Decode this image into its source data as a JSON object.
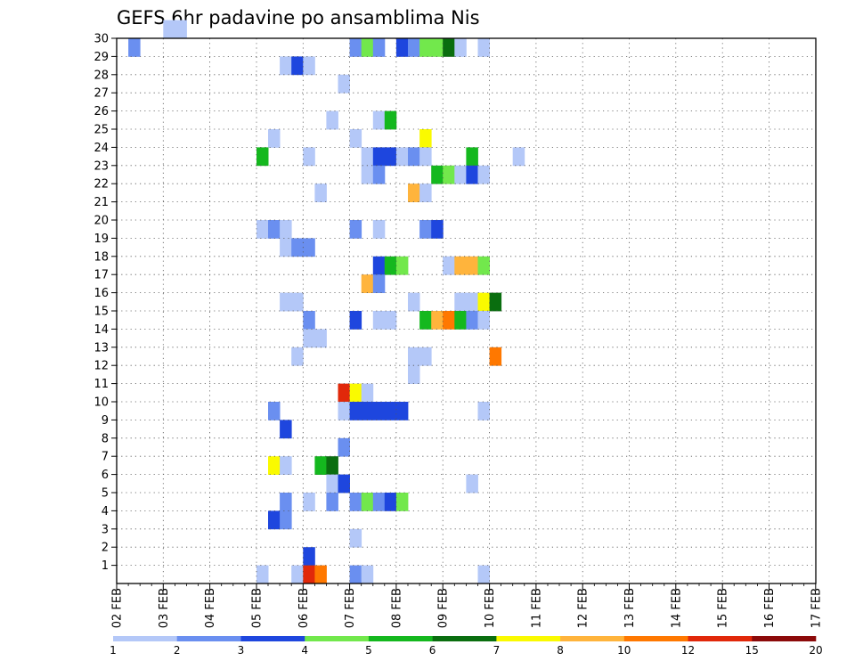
{
  "chart_data": {
    "type": "heatmap",
    "title": "GEFS 6hr padavine po ansamblima Nis",
    "xlabel": "",
    "ylabel": "",
    "x_tick_labels": [
      "02 FEB",
      "03 FEB",
      "04 FEB",
      "05 FEB",
      "06 FEB",
      "07 FEB",
      "08 FEB",
      "09 FEB",
      "10 FEB",
      "11 FEB",
      "12 FEB",
      "13 FEB",
      "14 FEB",
      "15 FEB",
      "16 FEB",
      "17 FEB"
    ],
    "x_range": [
      0,
      60
    ],
    "y_tick_labels": [
      "1",
      "2",
      "3",
      "4",
      "5",
      "6",
      "7",
      "8",
      "9",
      "10",
      "11",
      "12",
      "13",
      "14",
      "15",
      "16",
      "17",
      "18",
      "19",
      "20",
      "21",
      "22",
      "23",
      "24",
      "25",
      "26",
      "27",
      "28",
      "29",
      "30"
    ],
    "y_range": [
      0,
      30
    ],
    "grid": true,
    "colorbar": {
      "position": "bottom",
      "labels": [
        "1",
        "2",
        "3",
        "4",
        "5",
        "6",
        "7",
        "8",
        "10",
        "12",
        "15",
        "20"
      ],
      "colors": [
        "#b4c8f8",
        "#6a8ff0",
        "#1e46de",
        "#72e84c",
        "#14b81e",
        "#0a6e0f",
        "#fafa00",
        "#ffb43c",
        "#ff7800",
        "#e1280a",
        "#8c0a0a"
      ]
    },
    "cells": [
      [
        4,
        30,
        0
      ],
      [
        5,
        30,
        0
      ],
      [
        1,
        29,
        1
      ],
      [
        20,
        29,
        1
      ],
      [
        21,
        29,
        3
      ],
      [
        22,
        29,
        1
      ],
      [
        24,
        29,
        2
      ],
      [
        25,
        29,
        1
      ],
      [
        26,
        29,
        3
      ],
      [
        27,
        29,
        3
      ],
      [
        28,
        29,
        5
      ],
      [
        29,
        29,
        0
      ],
      [
        31,
        29,
        0
      ],
      [
        14,
        28,
        0
      ],
      [
        15,
        28,
        2
      ],
      [
        16,
        28,
        0
      ],
      [
        19,
        27,
        0
      ],
      [
        18,
        25,
        0
      ],
      [
        22,
        25,
        0
      ],
      [
        23,
        25,
        4
      ],
      [
        13,
        24,
        0
      ],
      [
        20,
        24,
        0
      ],
      [
        26,
        24,
        6
      ],
      [
        12,
        23,
        4
      ],
      [
        16,
        23,
        0
      ],
      [
        21,
        23,
        0
      ],
      [
        22,
        23,
        2
      ],
      [
        23,
        23,
        2
      ],
      [
        24,
        23,
        0
      ],
      [
        25,
        23,
        1
      ],
      [
        26,
        23,
        0
      ],
      [
        30,
        23,
        4
      ],
      [
        34,
        23,
        0
      ],
      [
        21,
        22,
        0
      ],
      [
        22,
        22,
        1
      ],
      [
        27,
        22,
        4
      ],
      [
        28,
        22,
        3
      ],
      [
        29,
        22,
        0
      ],
      [
        30,
        22,
        2
      ],
      [
        31,
        22,
        0
      ],
      [
        17,
        21,
        0
      ],
      [
        25,
        21,
        7
      ],
      [
        26,
        21,
        0
      ],
      [
        12,
        19,
        0
      ],
      [
        13,
        19,
        1
      ],
      [
        14,
        19,
        0
      ],
      [
        20,
        19,
        1
      ],
      [
        22,
        19,
        0
      ],
      [
        26,
        19,
        1
      ],
      [
        27,
        19,
        2
      ],
      [
        14,
        18,
        0
      ],
      [
        15,
        18,
        1
      ],
      [
        16,
        18,
        1
      ],
      [
        22,
        17,
        2
      ],
      [
        23,
        17,
        4
      ],
      [
        24,
        17,
        3
      ],
      [
        28,
        17,
        0
      ],
      [
        29,
        17,
        7
      ],
      [
        30,
        17,
        7
      ],
      [
        31,
        17,
        3
      ],
      [
        21,
        16,
        7
      ],
      [
        22,
        16,
        1
      ],
      [
        14,
        15,
        0
      ],
      [
        15,
        15,
        0
      ],
      [
        25,
        15,
        0
      ],
      [
        29,
        15,
        0
      ],
      [
        30,
        15,
        0
      ],
      [
        31,
        15,
        6
      ],
      [
        32,
        15,
        5
      ],
      [
        16,
        14,
        1
      ],
      [
        20,
        14,
        2
      ],
      [
        22,
        14,
        0
      ],
      [
        23,
        14,
        0
      ],
      [
        26,
        14,
        4
      ],
      [
        27,
        14,
        7
      ],
      [
        28,
        14,
        8
      ],
      [
        29,
        14,
        4
      ],
      [
        30,
        14,
        1
      ],
      [
        31,
        14,
        0
      ],
      [
        16,
        13,
        0
      ],
      [
        17,
        13,
        0
      ],
      [
        15,
        12,
        0
      ],
      [
        25,
        12,
        0
      ],
      [
        26,
        12,
        0
      ],
      [
        32,
        12,
        8
      ],
      [
        25,
        11,
        0
      ],
      [
        19,
        10,
        9
      ],
      [
        20,
        10,
        6
      ],
      [
        21,
        10,
        0
      ],
      [
        13,
        9,
        1
      ],
      [
        19,
        9,
        0
      ],
      [
        20,
        9,
        2
      ],
      [
        21,
        9,
        2
      ],
      [
        22,
        9,
        2
      ],
      [
        23,
        9,
        2
      ],
      [
        24,
        9,
        2
      ],
      [
        31,
        9,
        0
      ],
      [
        14,
        8,
        2
      ],
      [
        19,
        7,
        1
      ],
      [
        13,
        6,
        6
      ],
      [
        14,
        6,
        0
      ],
      [
        17,
        6,
        4
      ],
      [
        18,
        6,
        5
      ],
      [
        18,
        5,
        0
      ],
      [
        19,
        5,
        2
      ],
      [
        30,
        5,
        0
      ],
      [
        14,
        4,
        1
      ],
      [
        16,
        4,
        0
      ],
      [
        18,
        4,
        1
      ],
      [
        20,
        4,
        1
      ],
      [
        21,
        4,
        3
      ],
      [
        22,
        4,
        1
      ],
      [
        23,
        4,
        2
      ],
      [
        24,
        4,
        3
      ],
      [
        13,
        3,
        2
      ],
      [
        14,
        3,
        1
      ],
      [
        20,
        2,
        0
      ],
      [
        16,
        1,
        2
      ],
      [
        12,
        0,
        0
      ],
      [
        15,
        0,
        0
      ],
      [
        16,
        0,
        9
      ],
      [
        17,
        0,
        8
      ],
      [
        20,
        0,
        1
      ],
      [
        21,
        0,
        0
      ],
      [
        31,
        0,
        0
      ]
    ]
  }
}
